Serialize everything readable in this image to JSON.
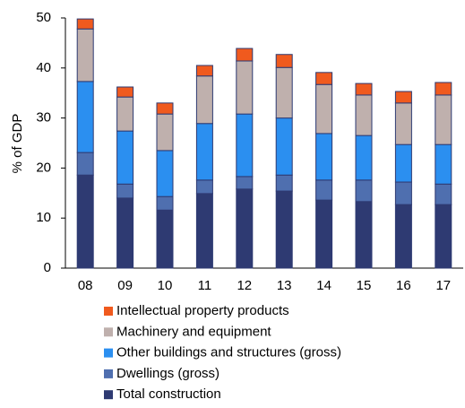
{
  "chart_data": {
    "type": "stacked-bar",
    "y_label": "% of GDP",
    "categories": [
      "08",
      "09",
      "10",
      "11",
      "12",
      "13",
      "14",
      "15",
      "16",
      "17"
    ],
    "series": [
      {
        "name": "Total construction",
        "color": "#2e3a72",
        "values": [
          18.6,
          14.0,
          11.6,
          14.9,
          15.8,
          15.4,
          13.6,
          13.3,
          12.7,
          12.7
        ]
      },
      {
        "name": "Dwellings (gross)",
        "color": "#4f6faf",
        "values": [
          4.5,
          2.8,
          2.7,
          2.7,
          2.5,
          3.2,
          4.0,
          4.3,
          4.5,
          4.1
        ]
      },
      {
        "name": "Other buildings and structures (gross)",
        "color": "#2b8ff0",
        "values": [
          14.2,
          10.6,
          9.2,
          11.3,
          12.5,
          11.4,
          9.3,
          8.9,
          7.5,
          7.9
        ]
      },
      {
        "name": "Machinery and equipment",
        "color": "#bfb0ad",
        "values": [
          10.5,
          6.8,
          7.3,
          9.5,
          10.6,
          10.1,
          9.8,
          8.1,
          8.3,
          9.9
        ]
      },
      {
        "name": "Intellectual property products",
        "color": "#f05a1e",
        "values": [
          2.0,
          2.0,
          2.2,
          2.1,
          2.5,
          2.6,
          2.4,
          2.3,
          2.3,
          2.5
        ]
      }
    ],
    "ylim": [
      0,
      50
    ],
    "yticks": [
      0,
      10,
      20,
      30,
      40,
      50
    ],
    "grid": false
  }
}
